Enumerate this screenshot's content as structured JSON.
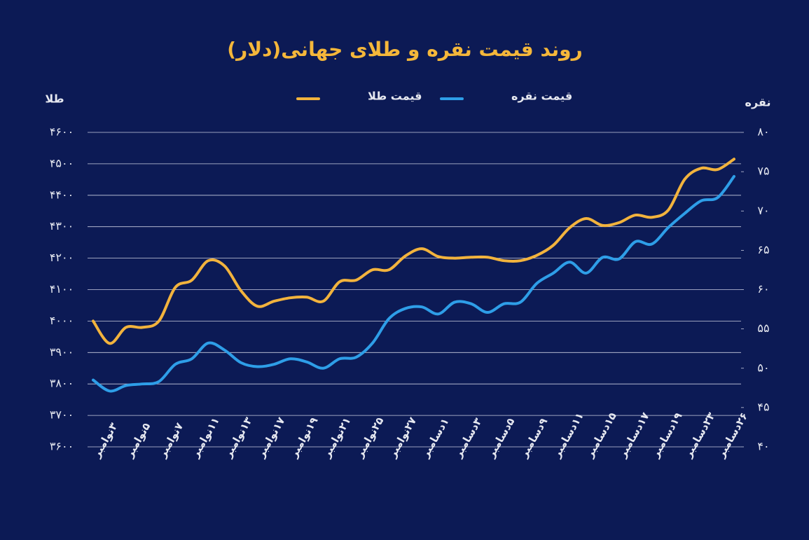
{
  "chart_data": {
    "type": "line",
    "title": "روند قیمت نقره و طلای جهانی(دلار)",
    "y_label": "طلا",
    "y2_label": "نقره",
    "categories": [
      "۳نوامبر",
      null,
      "۵نوامبر",
      null,
      "۷نوامبر",
      null,
      "۱۱نوامبر",
      null,
      "۱۳نوامبر",
      null,
      "۱۷نوامبر",
      null,
      "۱۹نوامبر",
      null,
      "۲۱نوامبر",
      null,
      "۲۵نوامبر",
      null,
      "۲۷نوامبر",
      null,
      "۱دسامبر",
      null,
      "۳دسامبر",
      null,
      "۵دسامبر",
      null,
      "۹دسامبر",
      null,
      "۱۱دسامبر",
      null,
      "۱۵دسامبر",
      null,
      "۱۷دسامبر",
      null,
      "۱۹دسامبر",
      null,
      "۲۳دسامبر",
      null,
      "۲۶دسامبر",
      null
    ],
    "series": [
      {
        "name": "قیمت طلا",
        "color": "#f2b33d",
        "axis": "y",
        "values": [
          4000,
          3929,
          3980,
          3980,
          4000,
          4107,
          4130,
          4192,
          4175,
          4096,
          4047,
          4063,
          4074,
          4076,
          4063,
          4125,
          4130,
          4163,
          4163,
          4207,
          4230,
          4205,
          4200,
          4203,
          4203,
          4192,
          4192,
          4209,
          4241,
          4297,
          4326,
          4304,
          4313,
          4337,
          4330,
          4353,
          4451,
          4486,
          4482,
          4515
        ]
      },
      {
        "name": "قیمت نقره",
        "color": "#2e9ee8",
        "axis": "y2",
        "values": [
          48.5,
          47.1,
          47.8,
          48.0,
          48.3,
          50.5,
          51.2,
          53.2,
          52.3,
          50.7,
          50.2,
          50.5,
          51.2,
          50.8,
          50.0,
          51.2,
          51.4,
          53.2,
          56.3,
          57.6,
          57.8,
          56.9,
          58.4,
          58.2,
          57.1,
          58.2,
          58.4,
          60.8,
          62.1,
          63.5,
          62.1,
          64.1,
          63.9,
          66.1,
          65.8,
          67.9,
          69.7,
          71.3,
          71.7,
          74.4
        ]
      }
    ],
    "ylim": [
      3600,
      4600
    ],
    "yticks": [
      {
        "value": 3600,
        "label": "۳۶۰۰"
      },
      {
        "value": 3700,
        "label": "۳۷۰۰"
      },
      {
        "value": 3800,
        "label": "۳۸۰۰"
      },
      {
        "value": 3900,
        "label": "۳۹۰۰"
      },
      {
        "value": 4000,
        "label": "۴۰۰۰"
      },
      {
        "value": 4100,
        "label": "۴۱۰۰"
      },
      {
        "value": 4200,
        "label": "۴۲۰۰"
      },
      {
        "value": 4300,
        "label": "۴۳۰۰"
      },
      {
        "value": 4400,
        "label": "۴۴۰۰"
      },
      {
        "value": 4500,
        "label": "۴۵۰۰"
      },
      {
        "value": 4600,
        "label": "۴۶۰۰"
      }
    ],
    "y2lim": [
      40,
      80
    ],
    "y2ticks": [
      {
        "value": 40,
        "label": "۴۰"
      },
      {
        "value": 45,
        "label": "۴۵"
      },
      {
        "value": 50,
        "label": "۵۰"
      },
      {
        "value": 55,
        "label": "۵۵"
      },
      {
        "value": 60,
        "label": "۶۰"
      },
      {
        "value": 65,
        "label": "۶۵"
      },
      {
        "value": 70,
        "label": "۷۰"
      },
      {
        "value": 75,
        "label": "۷۵"
      },
      {
        "value": 80,
        "label": "۸۰"
      }
    ],
    "grid": true
  }
}
